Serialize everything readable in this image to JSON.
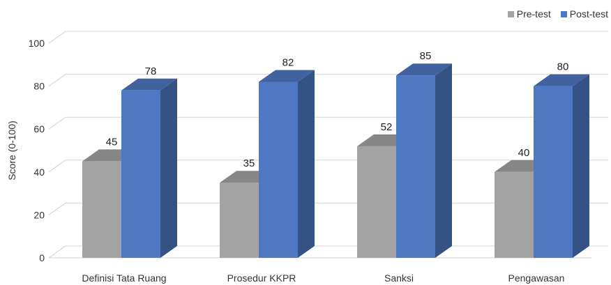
{
  "chart_data": {
    "type": "bar",
    "categories": [
      "Definisi Tata Ruang",
      "Prosedur KKPR",
      "Sanksi",
      "Pengawasan"
    ],
    "series": [
      {
        "name": "Pre-test",
        "values": [
          45,
          35,
          52,
          40
        ],
        "color": "#a3a3a3"
      },
      {
        "name": "Post-test",
        "values": [
          78,
          82,
          85,
          80
        ],
        "color": "#4e79c2"
      }
    ],
    "ylabel": "Score (0-100)",
    "ylim": [
      0,
      100
    ],
    "yticks": [
      "0",
      "20",
      "40",
      "60",
      "80",
      "100"
    ],
    "grid": true,
    "style": "3d-clustered-column",
    "legend_position": "top-right",
    "data_labels": true
  }
}
